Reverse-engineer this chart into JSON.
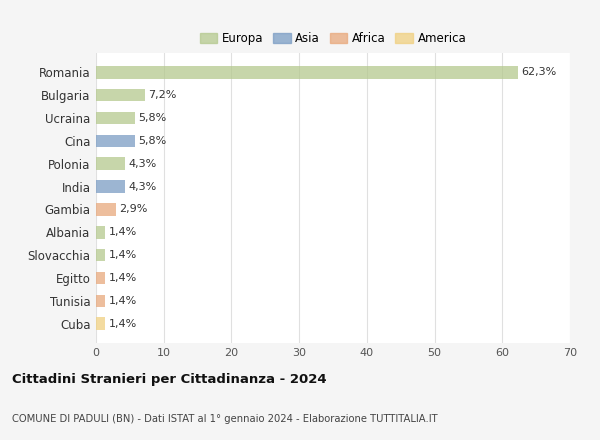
{
  "categories": [
    "Romania",
    "Bulgaria",
    "Ucraina",
    "Cina",
    "Polonia",
    "India",
    "Gambia",
    "Albania",
    "Slovacchia",
    "Egitto",
    "Tunisia",
    "Cuba"
  ],
  "values": [
    62.3,
    7.2,
    5.8,
    5.8,
    4.3,
    4.3,
    2.9,
    1.4,
    1.4,
    1.4,
    1.4,
    1.4
  ],
  "labels": [
    "62,3%",
    "7,2%",
    "5,8%",
    "5,8%",
    "4,3%",
    "4,3%",
    "2,9%",
    "1,4%",
    "1,4%",
    "1,4%",
    "1,4%",
    "1,4%"
  ],
  "bar_colors": [
    "#b5c98e",
    "#b5c98e",
    "#b5c98e",
    "#7b9dc4",
    "#b5c98e",
    "#7b9dc4",
    "#e8a87c",
    "#b5c98e",
    "#b5c98e",
    "#e8a87c",
    "#e8a87c",
    "#f0d080"
  ],
  "legend_labels": [
    "Europa",
    "Asia",
    "Africa",
    "America"
  ],
  "legend_colors": [
    "#b5c98e",
    "#7b9dc4",
    "#e8a87c",
    "#f0d080"
  ],
  "xlim": [
    0,
    70
  ],
  "xticks": [
    0,
    10,
    20,
    30,
    40,
    50,
    60,
    70
  ],
  "title": "Cittadini Stranieri per Cittadinanza - 2024",
  "subtitle": "COMUNE DI PADULI (BN) - Dati ISTAT al 1° gennaio 2024 - Elaborazione TUTTITALIA.IT",
  "plot_bg_color": "#ffffff",
  "fig_bg_color": "#f5f5f5",
  "grid_color": "#e0e0e0",
  "bar_alpha": 0.75
}
